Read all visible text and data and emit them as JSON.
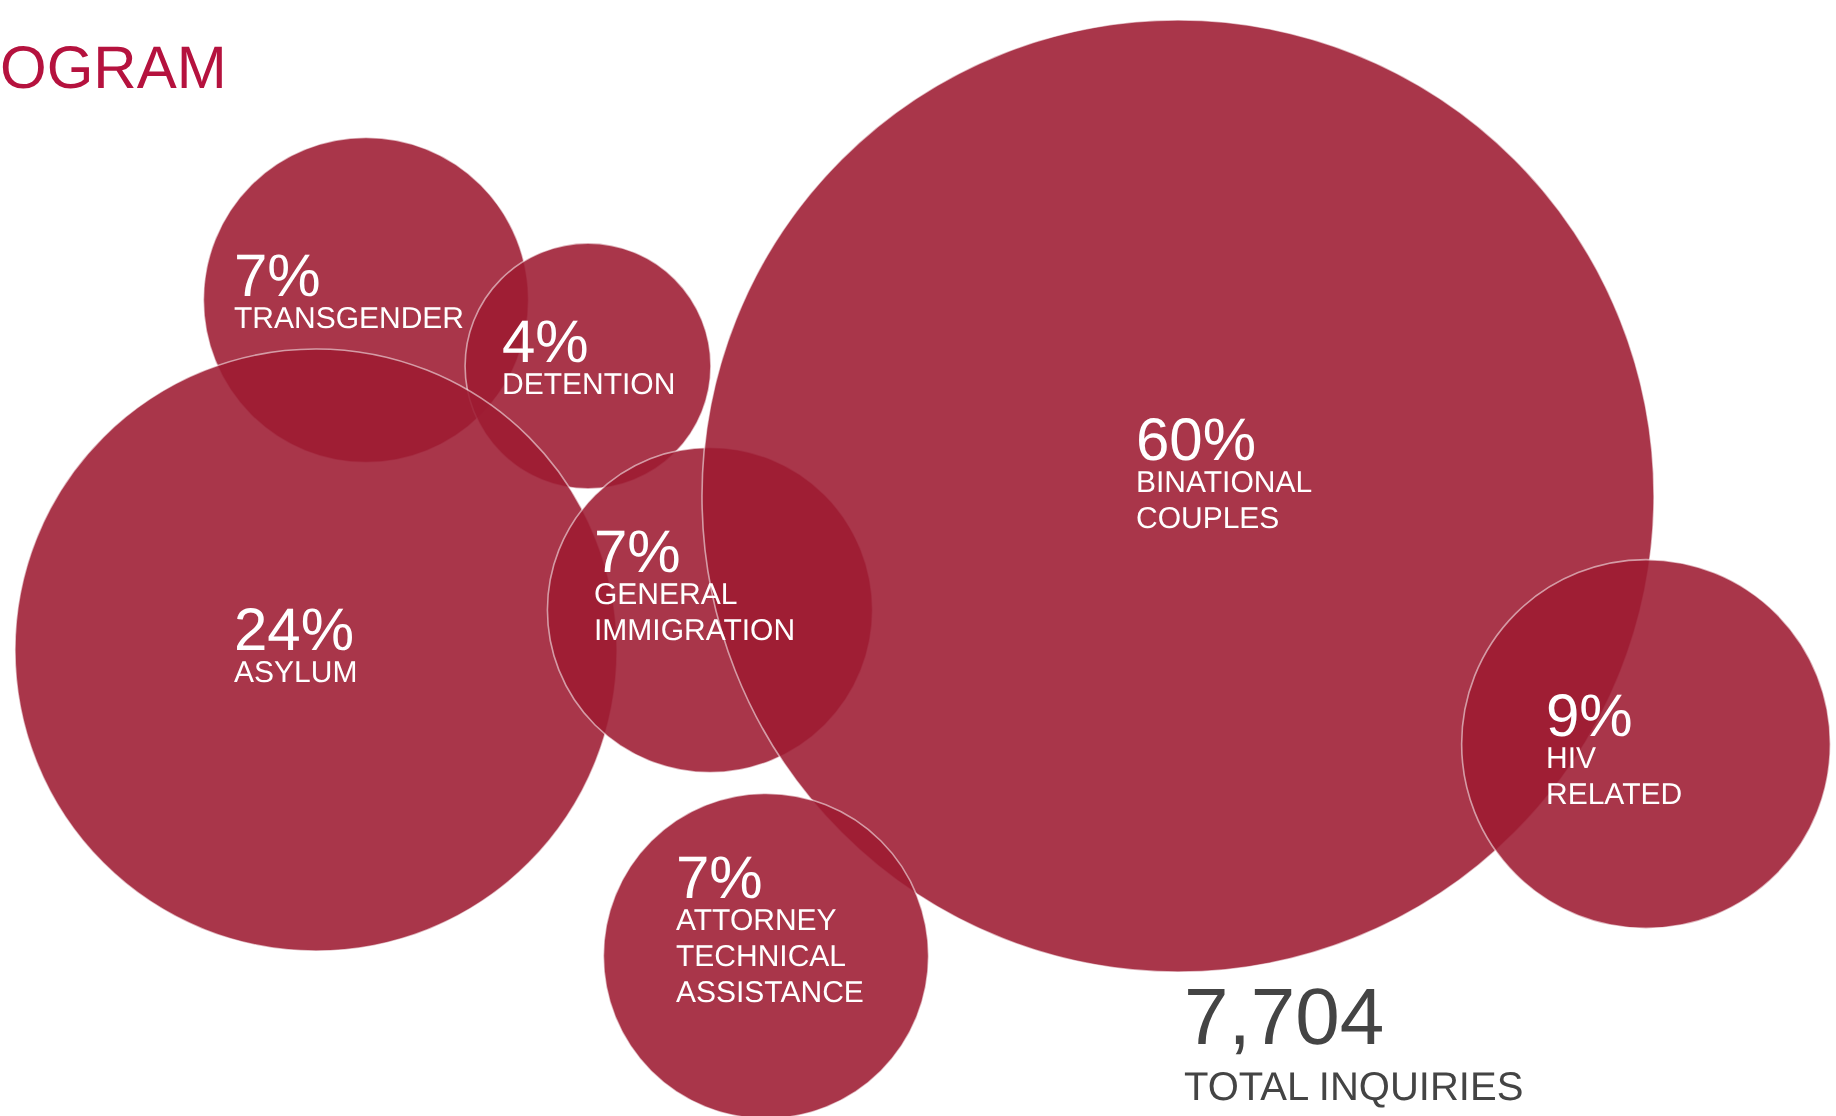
{
  "chart_data": {
    "type": "other",
    "title": "OGRAM",
    "categories": [
      "TRANSGENDER",
      "DETENTION",
      "ASYLUM",
      "GENERAL IMMIGRATION",
      "BINATIONAL COUPLES",
      "HIV RELATED",
      "ATTORNEY TECHNICAL ASSISTANCE"
    ],
    "values": [
      7,
      4,
      24,
      7,
      60,
      9,
      7
    ],
    "value_labels": [
      "7%",
      "4%",
      "24%",
      "7%",
      "60%",
      "9%",
      "7%"
    ],
    "color": "#9e1b32",
    "annotations": [
      "7,704",
      "TOTAL INQUIRIES"
    ]
  }
}
